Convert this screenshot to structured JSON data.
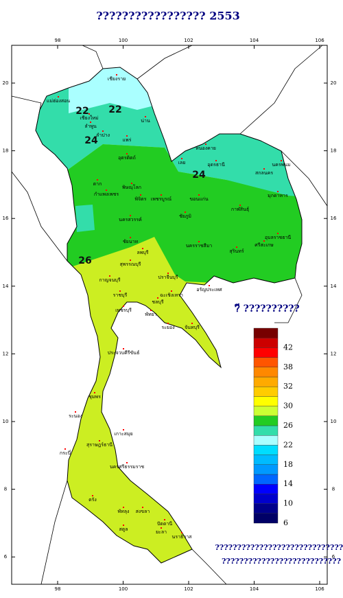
{
  "title": "????????????????? 2553",
  "map": {
    "longitude_ticks": [
      98,
      100,
      102,
      104,
      106
    ],
    "latitude_ticks": [
      6,
      8,
      10,
      12,
      14,
      16,
      18,
      20
    ],
    "contour_labels": [
      "22",
      "22",
      "24",
      "24",
      "26"
    ],
    "provinces": [
      "เชียงราย",
      "แม่ฮ่องสอน",
      "เชียงใหม่",
      "ลำพูน",
      "น่าน",
      "ลำปาง",
      "แพร่",
      "อุตรดิตถ์",
      "หนองคาย",
      "อุดรธานี",
      "เลย",
      "สกลนคร",
      "นครพนม",
      "มุกดาหาร",
      "ตาก",
      "พิษณุโลก",
      "กำแพงเพชร",
      "พิจิตร",
      "เพชรบูรณ์",
      "ขอนแก่น",
      "กาฬสินธุ์",
      "ชัยภูมิ",
      "นครสวรรค์",
      "อุบลราชธานี",
      "ชัยนาท",
      "ลพบุรี",
      "สุรินทร์",
      "ศรีสะเกษ",
      "นครราชสีมา",
      "สุพรรณบุรี",
      "กาญจนบุรี",
      "ปราจีนบุรี",
      "อรัญประเทศ",
      "ราชบุรี",
      "ฉะเชิงเทรา",
      "ชลบุรี",
      "เพชรบุรี",
      "พัทยา",
      "ระยอง",
      "จันทบุรี",
      "ประจวบคีรีขันธ์",
      "ชุมพร",
      "ระนอง",
      "เกาะสมุย",
      "สุราษฎร์ธานี",
      "กระบี่",
      "นครศรีธรรมราช",
      "ตรัง",
      "พัทลุง",
      "สงขลา",
      "ปัตตานี",
      "สตูล",
      "ยะลา",
      "นราธิวาส"
    ],
    "legend_title": "?ี ??????????",
    "colorbar": {
      "colors": [
        "#000066",
        "#00008b",
        "#0000cc",
        "#0000ff",
        "#0066ff",
        "#0099ff",
        "#00bbff",
        "#00ddff",
        "#aaffff",
        "#33ddaa",
        "#22cc22",
        "#ccff33",
        "#ffff00",
        "#ffcc00",
        "#ffaa00",
        "#ff8800",
        "#ff5500",
        "#ff0000",
        "#cc0000",
        "#770000"
      ],
      "ticks": [
        6,
        10,
        14,
        18,
        22,
        26,
        30,
        32,
        38,
        42
      ]
    }
  },
  "footer": [
    "??????????????????????????????",
    "???????????????????????????"
  ]
}
